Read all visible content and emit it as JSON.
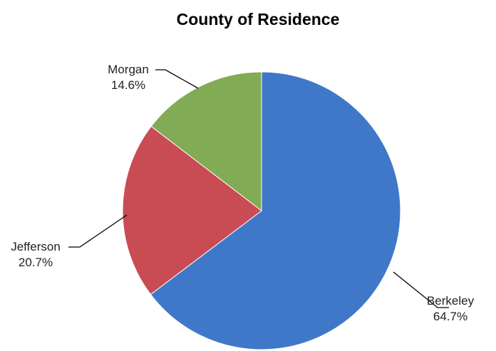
{
  "chart_data": {
    "type": "pie",
    "title": "County of Residence",
    "slices": [
      {
        "label": "Berkeley",
        "value": 64.7,
        "value_label": "64.7%",
        "color": "#3f78c8"
      },
      {
        "label": "Jefferson",
        "value": 20.7,
        "value_label": "20.7%",
        "color": "#c94b53"
      },
      {
        "label": "Morgan",
        "value": 14.6,
        "value_label": "14.6%",
        "color": "#82ab55"
      }
    ],
    "start": "12 o'clock",
    "direction": "clockwise",
    "legend": "none",
    "data_labels": "outside with leader lines"
  }
}
